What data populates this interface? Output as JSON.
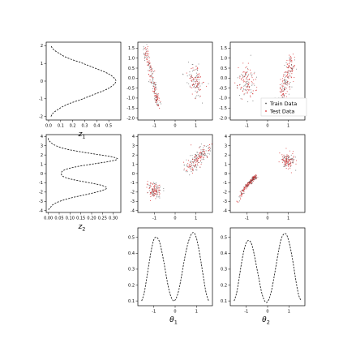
{
  "figure": {
    "background": "#ffffff",
    "frame_color": "#000000",
    "train_color": "#555555",
    "test_color": "#d62728",
    "curve_color": "#222222"
  },
  "legend": {
    "train_label": "Train Data",
    "test_label": "Test Data",
    "placement": "lower-right of top-right panel"
  },
  "chart_data": [
    {
      "id": "z1-density",
      "type": "line",
      "orientation": "horizontal-density",
      "xlabel": "z",
      "xlabel_sub": "1",
      "xlim": [
        -0.02,
        0.6
      ],
      "ylim": [
        -2.2,
        2.2
      ],
      "xticks": [
        "0.0",
        "0.1",
        "0.2",
        "0.3",
        "0.4",
        "0.5"
      ],
      "xtick_values": [
        0,
        0.1,
        0.2,
        0.3,
        0.4,
        0.5
      ],
      "yticks": [
        "-2",
        "-1",
        "0",
        "1",
        "2"
      ],
      "ytick_values": [
        -2,
        -1,
        0,
        1,
        2
      ],
      "grid": false,
      "series": [
        {
          "style": "dashed",
          "y_range": [
            -2.0,
            2.0
          ],
          "x": [
            0.02,
            0.03,
            0.05,
            0.08,
            0.11,
            0.15,
            0.2,
            0.26,
            0.31,
            0.36,
            0.41,
            0.46,
            0.5,
            0.53,
            0.55,
            0.56,
            0.55,
            0.53,
            0.5,
            0.46,
            0.41,
            0.36,
            0.31,
            0.26,
            0.2,
            0.15,
            0.11,
            0.08,
            0.05,
            0.03,
            0.02
          ]
        }
      ]
    },
    {
      "id": "z2-density",
      "type": "line",
      "orientation": "horizontal-density",
      "xlabel": "z",
      "xlabel_sub": "2",
      "xlim": [
        -0.01,
        0.335
      ],
      "ylim": [
        -4.2,
        4.2
      ],
      "xticks": [
        "0.00",
        "0.05",
        "0.10",
        "0.15",
        "0.20",
        "0.25",
        "0.30"
      ],
      "xtick_values": [
        0,
        0.05,
        0.1,
        0.15,
        0.2,
        0.25,
        0.3
      ],
      "yticks": [
        "-4",
        "-3",
        "-2",
        "-1",
        "0",
        "1",
        "2",
        "3",
        "4"
      ],
      "ytick_values": [
        -4,
        -3,
        -2,
        -1,
        0,
        1,
        2,
        3,
        4
      ],
      "grid": false,
      "series": [
        {
          "style": "dashed",
          "y_range": [
            -3.9,
            3.9
          ],
          "x": [
            0.0,
            0.01,
            0.02,
            0.04,
            0.07,
            0.11,
            0.16,
            0.21,
            0.25,
            0.27,
            0.25,
            0.2,
            0.14,
            0.09,
            0.065,
            0.06,
            0.065,
            0.09,
            0.14,
            0.21,
            0.28,
            0.32,
            0.29,
            0.22,
            0.15,
            0.09,
            0.05,
            0.025,
            0.01,
            0.0,
            0.0
          ]
        }
      ]
    },
    {
      "id": "z1-vs-theta1",
      "type": "scatter",
      "xlim": [
        -1.8,
        1.8
      ],
      "ylim": [
        -2.1,
        1.8
      ],
      "xticks": [
        "-1",
        "0",
        "1"
      ],
      "xtick_values": [
        -1,
        0,
        1
      ],
      "yticks": [
        "-2.0",
        "-1.5",
        "-1.0",
        "-0.5",
        "0.0",
        "0.5",
        "1.0",
        "1.5"
      ],
      "ytick_values": [
        -2,
        -1.5,
        -1,
        -0.5,
        0,
        0.5,
        1,
        1.5
      ],
      "grid": false,
      "clusters": [
        {
          "kind": "band",
          "x_range": [
            -1.45,
            -0.8
          ],
          "y_range": [
            1.5,
            -1.4
          ],
          "jitter_x": 0.06,
          "jitter_y": 0.1,
          "density": "high"
        },
        {
          "kind": "blob",
          "center": [
            1.0,
            -0.2
          ],
          "spread": [
            0.35,
            0.8
          ],
          "density": "medium"
        }
      ]
    },
    {
      "id": "z1-vs-theta2",
      "type": "scatter",
      "xlim": [
        -1.8,
        1.8
      ],
      "ylim": [
        -2.1,
        1.8
      ],
      "xticks": [
        "-1",
        "0",
        "1"
      ],
      "xtick_values": [
        -1,
        0,
        1
      ],
      "yticks": [
        "-2.0",
        "-1.5",
        "-1.0",
        "-0.5",
        "0.0",
        "0.5",
        "1.0",
        "1.5"
      ],
      "ytick_values": [
        -2,
        -1.5,
        -1,
        -0.5,
        0,
        0.5,
        1,
        1.5
      ],
      "grid": false,
      "clusters": [
        {
          "kind": "blob",
          "center": [
            -1.0,
            -0.2
          ],
          "spread": [
            0.4,
            0.75
          ],
          "density": "medium"
        },
        {
          "kind": "band",
          "x_range": [
            0.65,
            1.2
          ],
          "y_range": [
            -1.1,
            0.9
          ],
          "jitter_x": 0.12,
          "jitter_y": 0.25,
          "density": "high"
        }
      ]
    },
    {
      "id": "z2-vs-theta1",
      "type": "scatter",
      "xlim": [
        -1.8,
        1.8
      ],
      "ylim": [
        -4.2,
        4.2
      ],
      "xticks": [
        "-1",
        "0",
        "1"
      ],
      "xtick_values": [
        -1,
        0,
        1
      ],
      "yticks": [
        "-4",
        "-3",
        "-2",
        "-1",
        "0",
        "1",
        "2",
        "3",
        "4"
      ],
      "ytick_values": [
        -4,
        -3,
        -2,
        -1,
        0,
        1,
        2,
        3,
        4
      ],
      "grid": false,
      "clusters": [
        {
          "kind": "blob",
          "center": [
            -1.0,
            -1.8
          ],
          "spread": [
            0.3,
            0.7
          ],
          "density": "medium"
        },
        {
          "kind": "band",
          "x_range": [
            0.6,
            1.6
          ],
          "y_range": [
            0.4,
            2.8
          ],
          "jitter_x": 0.15,
          "jitter_y": 0.35,
          "density": "high"
        }
      ]
    },
    {
      "id": "z2-vs-theta2",
      "type": "scatter",
      "xlim": [
        -1.8,
        1.8
      ],
      "ylim": [
        -4.2,
        4.2
      ],
      "xticks": [
        "-1",
        "0",
        "1"
      ],
      "xtick_values": [
        -1,
        0,
        1
      ],
      "yticks": [
        "-4",
        "-3",
        "-2",
        "-1",
        "0",
        "1",
        "2",
        "3",
        "4"
      ],
      "ytick_values": [
        -4,
        -3,
        -2,
        -1,
        0,
        1,
        2,
        3,
        4
      ],
      "grid": false,
      "clusters": [
        {
          "kind": "arc",
          "x_range": [
            -1.45,
            -0.55
          ],
          "y_range": [
            -3.8,
            -0.3
          ],
          "jitter_x": 0.04,
          "jitter_y": 0.12,
          "density": "high"
        },
        {
          "kind": "blob",
          "center": [
            1.0,
            1.4
          ],
          "spread": [
            0.3,
            0.7
          ],
          "density": "medium"
        }
      ]
    },
    {
      "id": "theta1-density",
      "type": "line",
      "xlabel": "θ",
      "xlabel_sub": "1",
      "xlim": [
        -1.75,
        1.75
      ],
      "ylim": [
        0.07,
        0.56
      ],
      "xticks": [
        "-1",
        "0",
        "1"
      ],
      "xtick_values": [
        -1,
        0,
        1
      ],
      "yticks": [
        "0.1",
        "0.2",
        "0.3",
        "0.4",
        "0.5"
      ],
      "ytick_values": [
        0.1,
        0.2,
        0.3,
        0.4,
        0.5
      ],
      "grid": false,
      "series": [
        {
          "style": "dashed",
          "x_range": [
            -1.57,
            1.57
          ],
          "y": [
            0.1,
            0.15,
            0.24,
            0.34,
            0.43,
            0.49,
            0.5,
            0.48,
            0.42,
            0.34,
            0.25,
            0.17,
            0.12,
            0.1,
            0.12,
            0.17,
            0.25,
            0.34,
            0.42,
            0.48,
            0.52,
            0.53,
            0.5,
            0.43,
            0.34,
            0.24,
            0.15,
            0.1
          ]
        }
      ]
    },
    {
      "id": "theta2-density",
      "type": "line",
      "xlabel": "θ",
      "xlabel_sub": "2",
      "xlim": [
        -1.75,
        1.75
      ],
      "ylim": [
        0.07,
        0.56
      ],
      "xticks": [
        "-1",
        "0",
        "1"
      ],
      "xtick_values": [
        -1,
        0,
        1
      ],
      "yticks": [
        "0.1",
        "0.2",
        "0.3",
        "0.4",
        "0.5"
      ],
      "ytick_values": [
        0.1,
        0.2,
        0.3,
        0.4,
        0.5
      ],
      "grid": false,
      "series": [
        {
          "style": "dashed",
          "x_range": [
            -1.57,
            1.57
          ],
          "y": [
            0.1,
            0.15,
            0.24,
            0.34,
            0.42,
            0.47,
            0.48,
            0.46,
            0.4,
            0.32,
            0.24,
            0.16,
            0.11,
            0.09,
            0.11,
            0.16,
            0.24,
            0.33,
            0.42,
            0.49,
            0.52,
            0.52,
            0.48,
            0.41,
            0.32,
            0.22,
            0.14,
            0.1
          ]
        }
      ]
    }
  ]
}
